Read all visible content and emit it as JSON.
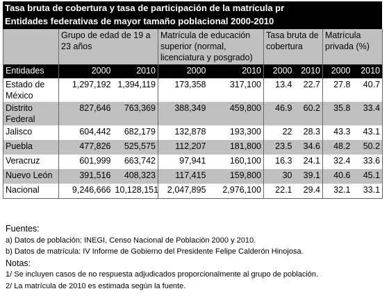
{
  "title": [
    "Tasa bruta de cobertura y tasa de participación de la matrícula pr",
    "Entidades federativas de mayor tamaño poblacional 2000-2010"
  ],
  "table": {
    "group_headers": [
      "Grupo de edad de 19 a 23 años",
      "Matrícula de educación superior (normal, licenciatura y posgrado)",
      "Tasa bruta de cobertura",
      "Matrícula privada (%)"
    ],
    "column_headers": [
      "Entidades",
      "2000",
      "2010",
      "2000",
      "2010",
      "2000",
      "2010",
      "2000",
      "2010"
    ],
    "rows": [
      [
        "Estado de México",
        "1,297,192",
        "1,394,119",
        "173,358",
        "317,100",
        "13.4",
        "22.7",
        "27.8",
        "40.7"
      ],
      [
        "Distrito Federal",
        "827,646",
        "763,369",
        "388,349",
        "459,800",
        "46.9",
        "60.2",
        "35.8",
        "33.4"
      ],
      [
        "Jalisco",
        "604,442",
        "682,179",
        "132,878",
        "193,300",
        "22",
        "28.3",
        "43.3",
        "43.1"
      ],
      [
        "Puebla",
        "477,826",
        "525,575",
        "112,207",
        "181,800",
        "23.5",
        "34.6",
        "48.2",
        "50.2"
      ],
      [
        "Veracruz",
        "601,999",
        "663,742",
        "97,941",
        "160,100",
        "16.3",
        "24.1",
        "32.4",
        "33.6"
      ],
      [
        "Nuevo León",
        "391,516",
        "408,323",
        "117,415",
        "159,800",
        "30",
        "39.1",
        "40.6",
        "45.1"
      ],
      [
        "Nacional",
        "9,246,666",
        "10,128,151",
        "2,047,895",
        "2,976,100",
        "22.1",
        "29.4",
        "32.1",
        "33.1"
      ]
    ]
  },
  "notes": [
    "Fuentes:",
    "a) Datos de población: INEGI, Censo Nacional de Población 2000 y 2010.",
    "b) Datos de matrícula: IV Informe de Gobierno del Presidente Felipe Calderón Hinojosa.",
    "Notas:",
    "1/ Se incluyen casos de no respuesta adjudicados proporcionalmente al grupo de población.",
    "2/ La matrícula de 2010 es estimada según la fuente."
  ]
}
